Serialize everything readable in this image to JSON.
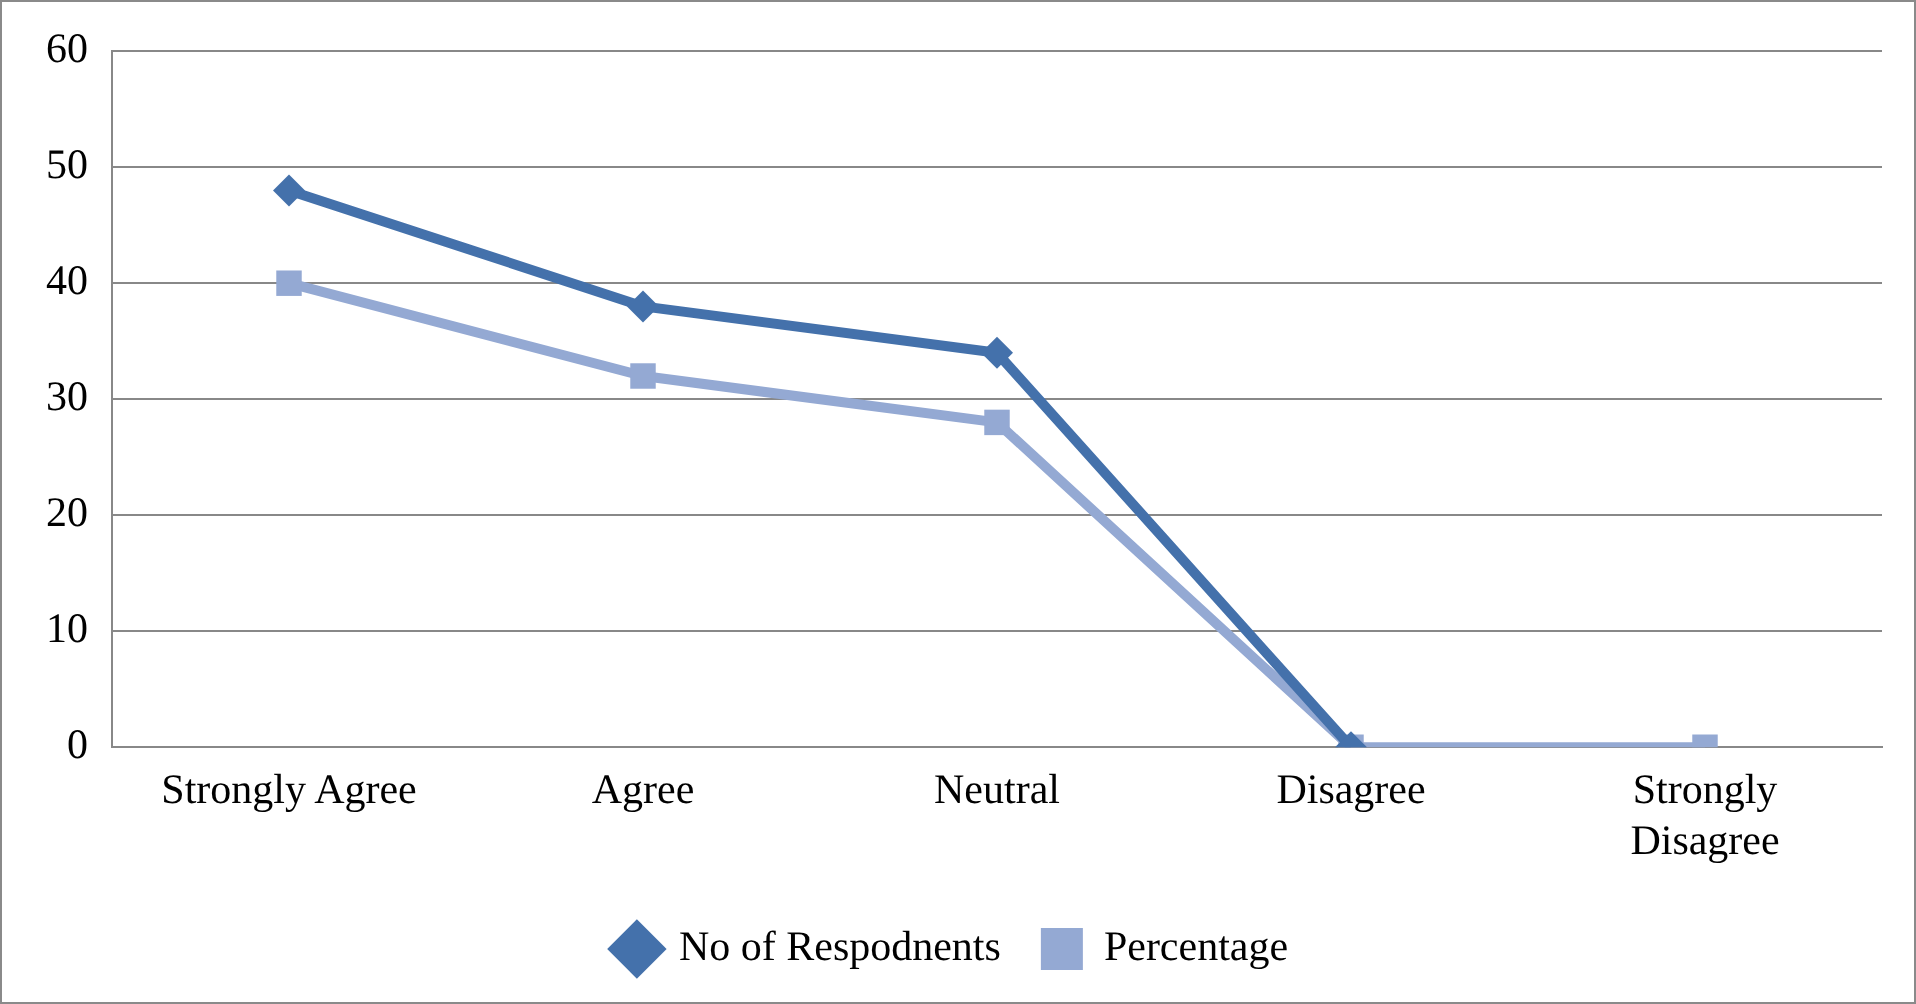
{
  "chart_data": {
    "type": "line",
    "categories": [
      "Strongly Agree",
      "Agree",
      "Neutral",
      "Disagree",
      "Strongly Disagree"
    ],
    "series": [
      {
        "name": "No of Respodnents",
        "color": "#4471ab",
        "values": [
          48,
          38,
          34,
          0,
          null
        ],
        "marker": "diamond"
      },
      {
        "name": "Percentage",
        "color": "#94a9d3",
        "values": [
          40,
          32,
          28,
          0,
          0
        ],
        "marker": "square"
      }
    ],
    "ylim": [
      0,
      60
    ],
    "yticks": [
      0,
      10,
      20,
      30,
      40,
      50,
      60
    ],
    "grid": "y",
    "legend": "bottom"
  }
}
